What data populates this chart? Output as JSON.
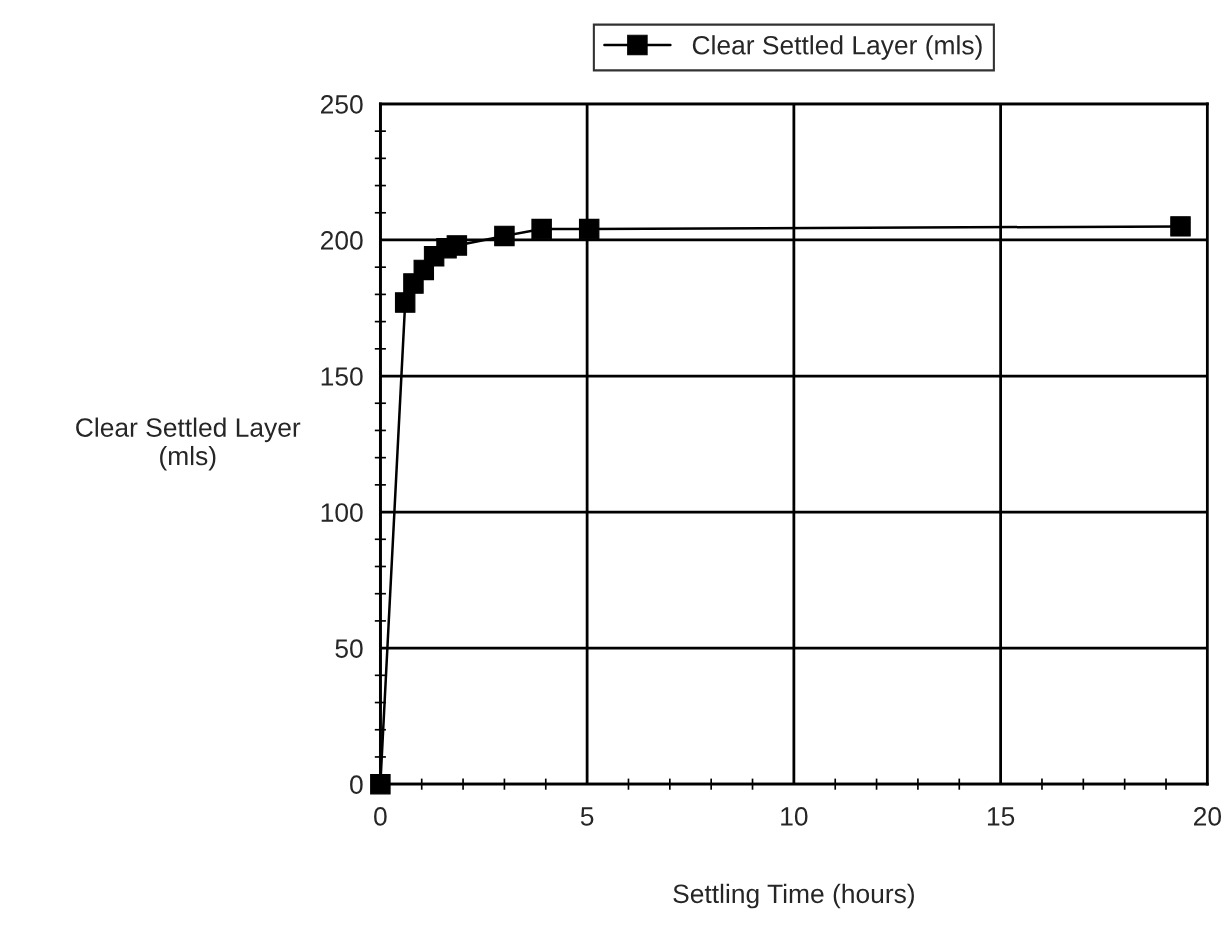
{
  "chart_data": {
    "type": "line",
    "xlabel": "Settling Time (hours)",
    "ylabel": "Clear Settled Layer\n(mls)",
    "x": [
      0,
      0.6,
      0.8,
      1.05,
      1.3,
      1.6,
      1.85,
      3.0,
      3.9,
      5.05,
      19.35
    ],
    "series": [
      {
        "name": "Clear Settled Layer (mls)",
        "color": "#000000",
        "values": [
          0,
          177,
          184,
          189,
          194,
          197,
          198,
          201.5,
          204,
          204,
          205
        ]
      }
    ],
    "xlim": [
      0,
      20
    ],
    "ylim": [
      0,
      250
    ],
    "xticks": [
      0,
      {
        "value": 1,
        "label": null
      },
      {
        "value": 2,
        "label": null
      },
      {
        "value": 3,
        "label": null
      },
      {
        "value": 4,
        "label": null
      },
      5,
      {
        "value": 6,
        "label": null
      },
      {
        "value": 7,
        "label": null
      },
      {
        "value": 8,
        "label": null
      },
      {
        "value": 9,
        "label": null
      },
      10,
      {
        "value": 11,
        "label": null
      },
      {
        "value": 12,
        "label": null
      },
      {
        "value": 13,
        "label": null
      },
      {
        "value": 14,
        "label": null
      },
      15,
      {
        "value": 16,
        "label": null
      },
      {
        "value": 17,
        "label": null
      },
      {
        "value": 18,
        "label": null
      },
      {
        "value": 19,
        "label": null
      },
      20
    ],
    "yticks": [
      0,
      {
        "value": 10,
        "label": null
      },
      {
        "value": 20,
        "label": null
      },
      {
        "value": 30,
        "label": null
      },
      {
        "value": 40,
        "label": null
      },
      50,
      {
        "value": 60,
        "label": null
      },
      {
        "value": 70,
        "label": null
      },
      {
        "value": 80,
        "label": null
      },
      {
        "value": 90,
        "label": null
      },
      100,
      {
        "value": 110,
        "label": null
      },
      {
        "value": 120,
        "label": null
      },
      {
        "value": 130,
        "label": null
      },
      {
        "value": 140,
        "label": null
      },
      150,
      {
        "value": 160,
        "label": null
      },
      {
        "value": 170,
        "label": null
      },
      {
        "value": 180,
        "label": null
      },
      {
        "value": 190,
        "label": null
      },
      200,
      {
        "value": 210,
        "label": null
      },
      {
        "value": 220,
        "label": null
      },
      {
        "value": 230,
        "label": null
      },
      {
        "value": 240,
        "label": null
      },
      250
    ],
    "grid": true,
    "legend": "top",
    "marker": "square",
    "line_style": "solid"
  }
}
